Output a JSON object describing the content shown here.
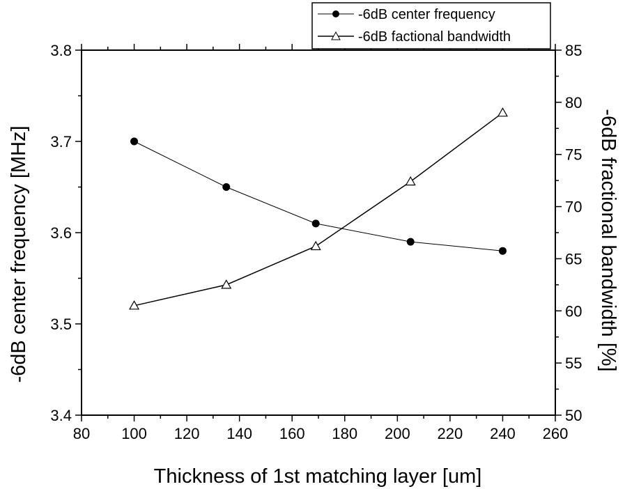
{
  "chart_data": {
    "type": "line",
    "xlabel": "Thickness of 1st matching layer [um]",
    "ylabel_left": "-6dB center frequency [MHz]",
    "ylabel_right": "-6dB fractional bandwidth [%]",
    "xlim": [
      80,
      260
    ],
    "ylim_left": [
      3.4,
      3.8
    ],
    "ylim_right": [
      50,
      85
    ],
    "x_ticks": [
      80,
      100,
      120,
      140,
      160,
      180,
      200,
      220,
      240,
      260
    ],
    "y_left_ticks": [
      "3.4",
      "3.5",
      "3.6",
      "3.7",
      "3.8"
    ],
    "y_right_ticks": [
      50,
      55,
      60,
      65,
      70,
      75,
      80,
      85
    ],
    "grid": false,
    "legend_position": "top-right",
    "series": [
      {
        "name": "-6dB center frequency",
        "axis": "left",
        "marker": "filled-circle",
        "x": [
          100,
          135,
          169,
          205,
          240
        ],
        "values": [
          3.7,
          3.65,
          3.61,
          3.59,
          3.58
        ]
      },
      {
        "name": "-6dB factional bandwidth",
        "axis": "right",
        "marker": "open-triangle",
        "x": [
          100,
          135,
          169,
          205,
          240
        ],
        "values": [
          60.5,
          62.5,
          66.2,
          72.4,
          79.0
        ]
      }
    ]
  }
}
